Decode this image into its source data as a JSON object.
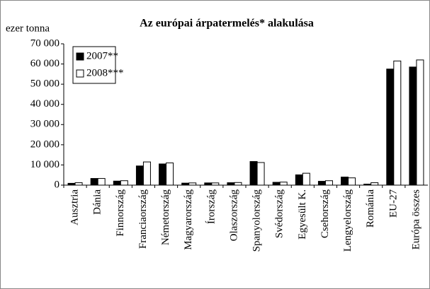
{
  "chart_data": {
    "type": "bar",
    "title": "Az európai árpatermelés* alakulása",
    "y_label": "ezer tonna",
    "categories": [
      "Ausztria",
      "Dánia",
      "Finnország",
      "Franciaország",
      "Németország",
      "Magyarország",
      "Írország",
      "Olaszország",
      "Spanyolország",
      "Svédország",
      "Egyesült K.",
      "Csehország",
      "Lengyelország",
      "Románia",
      "EU-27",
      "Európa összes"
    ],
    "series": [
      {
        "name": "2007**",
        "color": "#000000",
        "values": [
          900,
          3300,
          2000,
          9500,
          10500,
          1000,
          1100,
          1200,
          11700,
          1400,
          5100,
          1900,
          4000,
          500,
          57500,
          58500
        ]
      },
      {
        "name": "2008***",
        "color": "#ffffff",
        "values": [
          1200,
          3300,
          2200,
          11500,
          11000,
          1100,
          1100,
          1300,
          11200,
          1500,
          5900,
          2200,
          3600,
          1200,
          61500,
          62000
        ]
      }
    ],
    "ylim": [
      0,
      70000
    ],
    "yticks": [
      0,
      {
        "value": 10000,
        "label": "10 000"
      },
      {
        "value": 20000,
        "label": "20 000"
      },
      {
        "value": 30000,
        "label": "30 000"
      },
      {
        "value": 40000,
        "label": "40 000"
      },
      {
        "value": 50000,
        "label": "50 000"
      },
      {
        "value": 60000,
        "label": "60 000"
      },
      {
        "value": 70000,
        "label": "70 000"
      }
    ],
    "legend": "upper left",
    "grid": false
  }
}
